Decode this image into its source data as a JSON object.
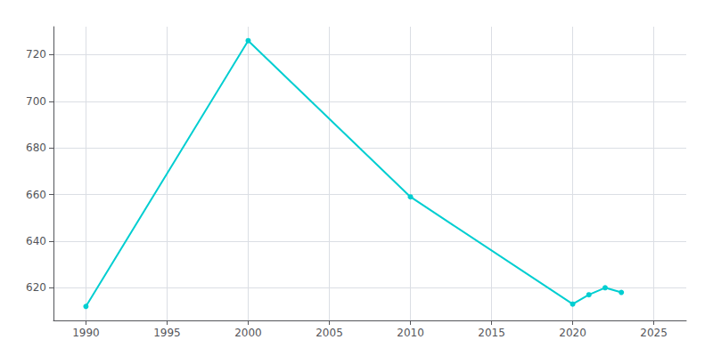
{
  "chart_data": {
    "type": "line",
    "x": [
      1990,
      2000,
      2010,
      2020,
      2021,
      2022,
      2023
    ],
    "values": [
      612,
      726,
      659,
      613,
      617,
      620,
      618
    ],
    "color": "#00CED1",
    "marker": "circle",
    "xlim": [
      1988,
      2027
    ],
    "ylim": [
      606,
      732
    ],
    "xticks": [
      1990,
      1995,
      2000,
      2005,
      2010,
      2015,
      2020,
      2025
    ],
    "yticks": [
      620,
      640,
      660,
      680,
      700,
      720
    ],
    "grid": true
  }
}
